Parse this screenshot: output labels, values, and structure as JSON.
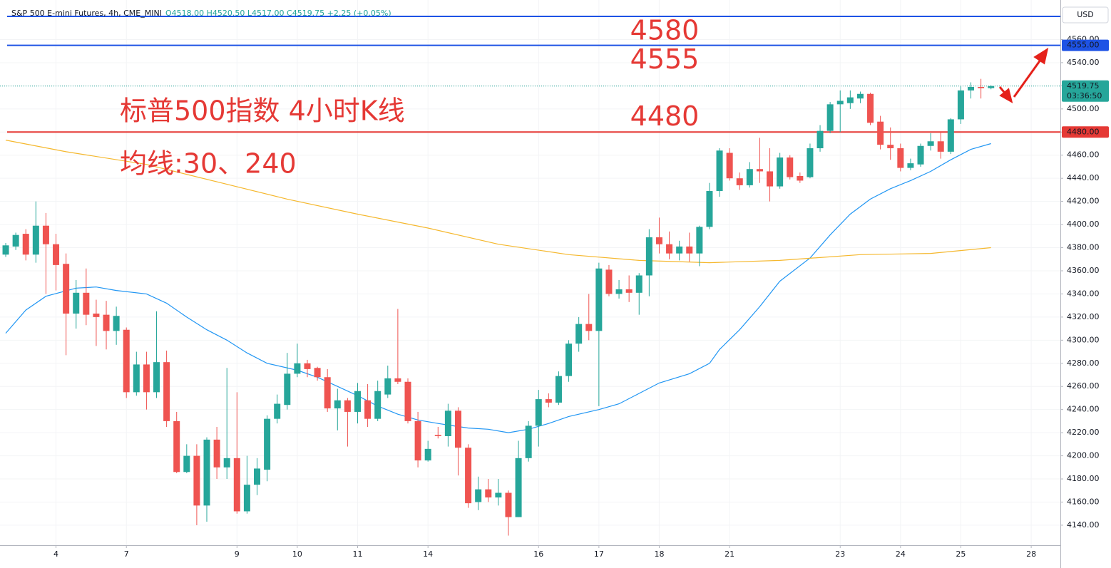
{
  "chart_data": {
    "type": "candlestick",
    "title": "S&P 500 E-mini Futures, 4h, CME_MINI",
    "subtitle": "O4518.00 H4520.50 L4517.00 C4519.75 +2.25 (+0.05%)",
    "annotations": [
      "标普500指数 4小时K线",
      "均线:30、240"
    ],
    "currency": "USD",
    "up_color": "#26a69a",
    "down_color": "#ef5350",
    "grid": true,
    "xlim": [
      -0.57,
      104.9
    ],
    "ylim": [
      4122.7,
      4594.2
    ],
    "yticks": [
      {
        "value": 4140,
        "label": "4140.00"
      },
      {
        "value": 4160,
        "label": "4160.00"
      },
      {
        "value": 4180,
        "label": "4180.00"
      },
      {
        "value": 4200,
        "label": "4200.00"
      },
      {
        "value": 4220,
        "label": "4220.00"
      },
      {
        "value": 4240,
        "label": "4240.00"
      },
      {
        "value": 4260,
        "label": "4260.00"
      },
      {
        "value": 4280,
        "label": "4280.00"
      },
      {
        "value": 4300,
        "label": "4300.00"
      },
      {
        "value": 4320,
        "label": "4320.00"
      },
      {
        "value": 4340,
        "label": "4340.00"
      },
      {
        "value": 4360,
        "label": "4360.00"
      },
      {
        "value": 4380,
        "label": "4380.00"
      },
      {
        "value": 4400,
        "label": "4400.00"
      },
      {
        "value": 4420,
        "label": "4420.00"
      },
      {
        "value": 4440,
        "label": "4440.00"
      },
      {
        "value": 4460,
        "label": "4460.00"
      },
      {
        "value": 4480,
        "label": "4480.00"
      },
      {
        "value": 4500,
        "label": "4500.00"
      },
      {
        "value": 4520,
        "label": "4520.00"
      },
      {
        "value": 4540,
        "label": "4540.00"
      },
      {
        "value": 4560,
        "label": "4560.00"
      }
    ],
    "categories": [
      null,
      null,
      null,
      null,
      null,
      "4",
      null,
      null,
      null,
      null,
      null,
      null,
      "7",
      null,
      null,
      null,
      null,
      null,
      null,
      null,
      null,
      null,
      null,
      "9",
      null,
      null,
      null,
      null,
      null,
      "10",
      null,
      null,
      null,
      null,
      null,
      "11",
      null,
      null,
      null,
      null,
      null,
      null,
      "14",
      null,
      null,
      null,
      null,
      null,
      null,
      null,
      null,
      null,
      null,
      "16",
      null,
      null,
      null,
      null,
      null,
      "17",
      null,
      null,
      null,
      null,
      null,
      "18",
      null,
      null,
      null,
      null,
      null,
      null,
      "21",
      null,
      null,
      null,
      null,
      null,
      null,
      null,
      null,
      null,
      null,
      "23",
      null,
      null,
      null,
      null,
      null,
      "24",
      null,
      null,
      null,
      null,
      null,
      "25",
      null,
      null,
      null,
      null,
      null,
      null,
      "28"
    ],
    "series": {
      "open": [
        4374,
        4381,
        4392,
        4374,
        4399,
        4383,
        4366,
        4323,
        4341,
        4323,
        4322,
        4308,
        4309,
        4255,
        4279,
        4255,
        4281,
        4230,
        4186,
        4200,
        4157,
        4214,
        4190,
        4198,
        4152,
        4175,
        4188,
        4232,
        4244,
        4271,
        4280,
        4276,
        4268,
        4241,
        4248,
        4238,
        4248,
        4232,
        4253,
        4267,
        4264,
        4230,
        4196,
        4218,
        4217,
        4239,
        4207,
        4160,
        4171,
        4164,
        4168,
        4147,
        4198,
        4226,
        4249,
        4246,
        4269,
        4297,
        4314,
        4308,
        4361,
        4340,
        4344,
        4341,
        4356,
        4389,
        4383,
        4375,
        4381,
        4375,
        4398,
        4429,
        4462,
        4440,
        4434,
        4448,
        4446,
        4433,
        4458,
        4442,
        4441,
        4466,
        4481,
        4504,
        4505,
        4509,
        4513,
        4489,
        4469,
        4466,
        4449,
        4452,
        4468,
        4472,
        4463,
        4491,
        4516,
        4519,
        4518,
        null,
        null,
        null,
        null
      ],
      "high": [
        4384,
        4393,
        4396,
        4420,
        4410,
        4392,
        4375,
        4352,
        4362,
        4335,
        4334,
        4329,
        4311,
        4290,
        4290,
        4325,
        4291,
        4238,
        4210,
        4210,
        4216,
        4225,
        4276,
        4255,
        4200,
        4198,
        4235,
        4253,
        4289,
        4297,
        4283,
        4277,
        4275,
        4258,
        4250,
        4263,
        4262,
        4265,
        4278,
        4327,
        4267,
        4238,
        4213,
        4225,
        4245,
        4242,
        4210,
        4182,
        4180,
        4180,
        4170,
        4213,
        4230,
        4257,
        4254,
        4273,
        4300,
        4320,
        4340,
        4367,
        4365,
        4352,
        4356,
        4358,
        4396,
        4406,
        4394,
        4386,
        4393,
        4399,
        4436,
        4466,
        4466,
        4445,
        4454,
        4475,
        4466,
        4462,
        4460,
        4445,
        4470,
        4486,
        4506,
        4516,
        4516,
        4515,
        4514,
        4494,
        4484,
        4470,
        4457,
        4470,
        4479,
        4480,
        4492,
        4520,
        4523,
        4526,
        4520.5,
        null,
        null,
        null,
        null
      ],
      "low": [
        4372,
        4378,
        4369,
        4367,
        4340,
        4343,
        4287,
        4310,
        4313,
        4295,
        4292,
        4296,
        4250,
        4252,
        4240,
        4250,
        4225,
        4185,
        4185,
        4140,
        4143,
        4180,
        4180,
        4150,
        4150,
        4166,
        4178,
        4228,
        4240,
        4268,
        4268,
        4265,
        4238,
        4222,
        4208,
        4228,
        4225,
        4230,
        4250,
        4262,
        4228,
        4190,
        4195,
        4215,
        4208,
        4183,
        4155,
        4153,
        4160,
        4157,
        4131,
        4147,
        4195,
        4208,
        4242,
        4244,
        4264,
        4290,
        4300,
        4243,
        4338,
        4336,
        4333,
        4322,
        4338,
        4375,
        4370,
        4369,
        4368,
        4364,
        4396,
        4424,
        4438,
        4430,
        4432,
        4436,
        4420,
        4431,
        4439,
        4436,
        4440,
        4463,
        4479,
        4480,
        4500,
        4505,
        4486,
        4465,
        4456,
        4446,
        4447,
        4450,
        4464,
        4457,
        4461,
        4487,
        4509,
        4509,
        4517,
        null,
        null,
        null,
        null
      ],
      "close": [
        4382,
        4391,
        4374,
        4399,
        4383,
        4365,
        4323,
        4341,
        4322,
        4320,
        4308,
        4321,
        4255,
        4279,
        4255,
        4281,
        4230,
        4186,
        4200,
        4157,
        4214,
        4190,
        4198,
        4152,
        4175,
        4189,
        4232,
        4245,
        4271,
        4280,
        4275,
        4268,
        4241,
        4248,
        4238,
        4256,
        4232,
        4256,
        4267,
        4264,
        4230,
        4196,
        4206,
        4217,
        4239,
        4207,
        4159,
        4171,
        4164,
        4168,
        4147,
        4198,
        4226,
        4249,
        4246,
        4269,
        4297,
        4314,
        4308,
        4362,
        4340,
        4344,
        4341,
        4356,
        4389,
        4383,
        4375,
        4381,
        4375,
        4398,
        4429,
        4464,
        4440,
        4434,
        4448,
        4446,
        4433,
        4458,
        4441,
        4438,
        4466,
        4481,
        4504,
        4507,
        4510,
        4513,
        4488,
        4469,
        4466,
        4449,
        4453,
        4468,
        4472,
        4463,
        4491,
        4516,
        4519,
        4518,
        4519.75,
        null,
        null,
        null,
        null
      ]
    },
    "ma": [
      {
        "color": "#2196f3",
        "x": [
          0,
          2,
          4,
          7,
          9,
          11,
          14,
          16,
          18,
          20,
          22,
          24,
          26,
          29,
          31,
          33,
          35,
          37,
          39,
          41,
          43,
          46,
          48,
          50,
          52,
          54,
          56,
          59,
          61,
          63,
          65,
          68,
          70,
          71,
          73,
          75,
          77,
          80,
          82,
          84,
          86,
          88,
          90,
          92,
          94,
          96,
          98
        ],
        "values": [
          4306,
          4326,
          4338,
          4345,
          4346,
          4343,
          4340,
          4332,
          4320,
          4309,
          4300,
          4289,
          4280,
          4274,
          4268,
          4260,
          4252,
          4243,
          4236,
          4231,
          4228,
          4224,
          4223,
          4220,
          4223,
          4228,
          4234,
          4240,
          4245,
          4254,
          4263,
          4271,
          4280,
          4292,
          4309,
          4329,
          4351,
          4371,
          4391,
          4409,
          4422,
          4431,
          4438,
          4446,
          4456,
          4465,
          4470
        ]
      },
      {
        "color": "#f5b82e",
        "x": [
          0,
          6,
          14,
          21,
          28,
          35,
          42,
          49,
          56,
          63,
          70,
          77,
          85,
          92,
          98
        ],
        "values": [
          4473,
          4463,
          4452,
          4437,
          4422,
          4409,
          4397,
          4383,
          4374,
          4369,
          4367,
          4369,
          4374,
          4375,
          4380
        ]
      }
    ],
    "lines": [
      {
        "value": 4580,
        "label": "4580",
        "color": "#1e53e5"
      },
      {
        "value": 4555,
        "label": "4555",
        "axis_label": "4555.00",
        "color": "#1e53e5"
      },
      {
        "value": 4480,
        "label": "4480",
        "axis_label": "4480.00",
        "color": "#e53935"
      }
    ],
    "last_price": {
      "value": 4519.75,
      "label": "4519.75",
      "countdown": "03:36:50",
      "color": "#26a69a"
    }
  }
}
